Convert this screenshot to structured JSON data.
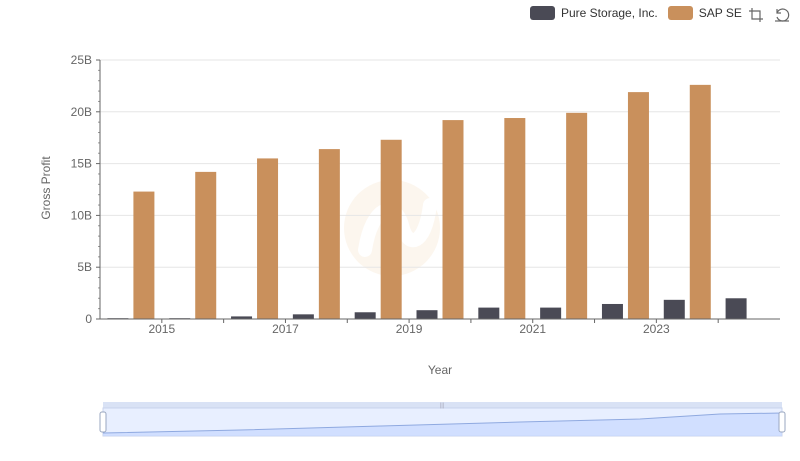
{
  "colors": {
    "pure_storage": "#4a4a55",
    "sap": "#c9905c",
    "grid": "#e6e6e6",
    "axis": "#666666"
  },
  "toolbox": {
    "zoom_icon": "zoom-select-icon",
    "restore_icon": "restore-icon"
  },
  "chart_data": {
    "type": "bar",
    "xlabel": "Year",
    "ylabel": "Gross Profit",
    "ylim": [
      0,
      25000000000
    ],
    "y_ticks": [
      {
        "value": 0,
        "label": "0"
      },
      {
        "value": 5000000000,
        "label": "5B"
      },
      {
        "value": 10000000000,
        "label": "10B"
      },
      {
        "value": 15000000000,
        "label": "15B"
      },
      {
        "value": 20000000000,
        "label": "20B"
      },
      {
        "value": 25000000000,
        "label": "25B"
      }
    ],
    "categories": [
      "2014",
      "2015",
      "2016",
      "2017",
      "2018",
      "2019",
      "2020",
      "2021",
      "2022",
      "2023",
      "2024"
    ],
    "x_tick_labels": [
      "2015",
      "2017",
      "2019",
      "2021",
      "2023"
    ],
    "series": [
      {
        "name": "Pure Storage, Inc.",
        "color": "#4a4a55",
        "values": [
          0,
          50000000,
          250000000,
          450000000,
          650000000,
          850000000,
          1100000000,
          1100000000,
          1450000000,
          1850000000,
          2000000000
        ]
      },
      {
        "name": "SAP SE",
        "color": "#c9905c",
        "values": [
          12300000000,
          14200000000,
          15500000000,
          16400000000,
          17300000000,
          19200000000,
          19400000000,
          19900000000,
          21900000000,
          22600000000,
          null
        ]
      }
    ],
    "legend_position": "top-right",
    "grid": true,
    "data_zoom": {
      "start": 0,
      "end": 100
    }
  }
}
